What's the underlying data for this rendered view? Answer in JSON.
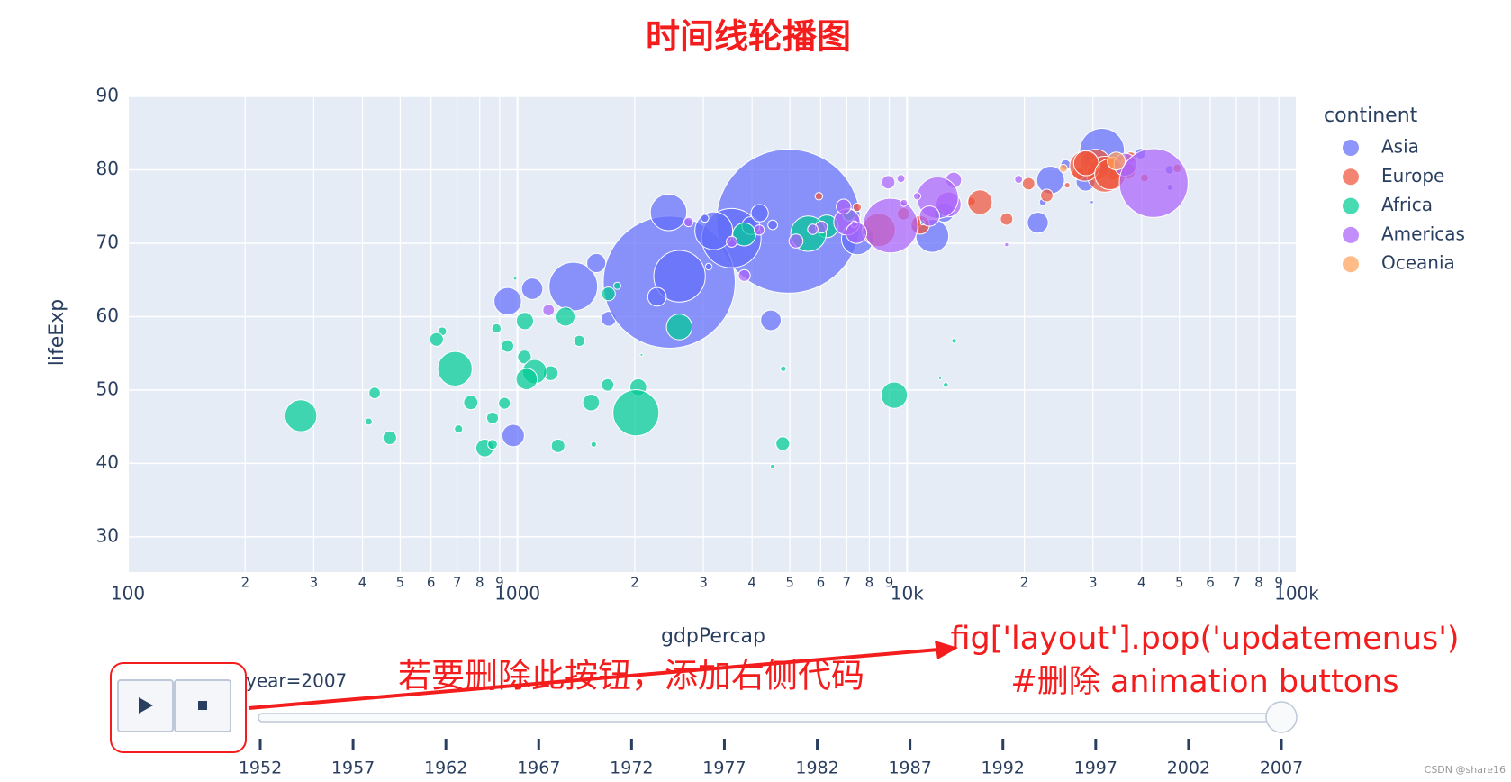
{
  "chart_data": {
    "type": "scatter",
    "title": "时间线轮播图",
    "x_label": "gdpPercap",
    "y_label": "lifeExp",
    "legend_title": "continent",
    "log_x": true,
    "grid": true,
    "xlim": [
      100,
      100000
    ],
    "ylim": [
      25.2,
      90
    ],
    "xticks": [
      100,
      {
        "value": 200,
        "label": "2"
      },
      {
        "value": 300,
        "label": "3"
      },
      {
        "value": 400,
        "label": "4"
      },
      {
        "value": 500,
        "label": "5"
      },
      {
        "value": 600,
        "label": "6"
      },
      {
        "value": 700,
        "label": "7"
      },
      {
        "value": 800,
        "label": "8"
      },
      {
        "value": 900,
        "label": "9"
      },
      1000,
      {
        "value": 2000,
        "label": "2"
      },
      {
        "value": 3000,
        "label": "3"
      },
      {
        "value": 4000,
        "label": "4"
      },
      {
        "value": 5000,
        "label": "5"
      },
      {
        "value": 6000,
        "label": "6"
      },
      {
        "value": 7000,
        "label": "7"
      },
      {
        "value": 8000,
        "label": "8"
      },
      {
        "value": 9000,
        "label": "9"
      },
      {
        "value": 10000,
        "label": "10k"
      },
      {
        "value": 20000,
        "label": "2"
      },
      {
        "value": 30000,
        "label": "3"
      },
      {
        "value": 40000,
        "label": "4"
      },
      {
        "value": 50000,
        "label": "5"
      },
      {
        "value": 60000,
        "label": "6"
      },
      {
        "value": 70000,
        "label": "7"
      },
      {
        "value": 80000,
        "label": "8"
      },
      {
        "value": 90000,
        "label": "9"
      },
      {
        "value": 100000,
        "label": "100k"
      }
    ],
    "yticks": [
      30,
      40,
      50,
      60,
      70,
      80,
      90
    ],
    "series": [
      {
        "name": "Asia",
        "color": "#636efa",
        "x": [
          975,
          29796,
          1391,
          1714,
          4959,
          39725,
          2452,
          3541,
          11606,
          4471,
          25523,
          31656,
          4519,
          1593,
          23348,
          47307,
          10461,
          12452,
          3096,
          944,
          1091,
          22316,
          2606,
          3190,
          21655,
          47143,
          3970,
          4185,
          28718,
          7458,
          2442,
          3025,
          2281
        ],
        "values": [
          43.8,
          75.6,
          64.1,
          59.7,
          73.0,
          82.2,
          64.7,
          70.7,
          71.0,
          59.5,
          80.7,
          82.6,
          72.5,
          67.3,
          78.6,
          77.6,
          72.0,
          74.2,
          66.8,
          62.1,
          63.8,
          75.6,
          65.5,
          71.7,
          72.8,
          80.0,
          72.4,
          74.1,
          78.4,
          70.6,
          74.2,
          73.4,
          62.7
        ],
        "sizes": [
          32,
          0.7,
          150,
          14,
          1318,
          7,
          1110,
          224,
          69,
          27,
          6.4,
          127,
          6,
          23,
          49,
          2.5,
          4,
          24,
          2.9,
          48,
          29,
          3.2,
          169,
          91,
          28,
          4.6,
          20,
          19,
          23,
          65,
          85,
          4,
          22
        ]
      },
      {
        "name": "Europe",
        "color": "#EF553B",
        "x": [
          5937,
          33693,
          7446,
          10681,
          14619,
          22833,
          30470,
          32170,
          27538,
          18009,
          36181,
          40676,
          28570,
          36798,
          49357,
          15390,
          20510,
          10808,
          9787,
          25768,
          28821,
          33860,
          37506,
          8458,
          33203
        ],
        "values": [
          76.4,
          79.4,
          74.9,
          73.0,
          75.7,
          76.5,
          80.7,
          79.4,
          79.5,
          73.3,
          81.8,
          78.9,
          80.5,
          79.8,
          80.2,
          75.6,
          78.1,
          72.5,
          74.0,
          77.9,
          80.9,
          80.9,
          81.7,
          71.8,
          79.4
        ],
        "sizes": [
          3.6,
          10,
          4.5,
          7,
          4.5,
          10,
          61,
          82,
          10,
          10,
          0.3,
          4.1,
          58,
          16,
          4.6,
          38,
          10,
          22,
          10,
          2,
          40,
          9,
          7.5,
          71,
          61
        ]
      },
      {
        "name": "Africa",
        "color": "#00cc96",
        "x": [
          6223,
          4797,
          1441,
          12570,
          1217,
          430,
          2042,
          706,
          1704,
          986,
          278,
          1545,
          2082,
          5581,
          12154,
          641,
          691,
          13206,
          1328,
          943,
          1569,
          415,
          12057,
          1045,
          759,
          1042,
          1803,
          10957,
          3820,
          824,
          4811,
          620,
          2014,
          863,
          1712,
          863,
          926,
          9270,
          2602,
          4513,
          1107,
          883,
          7093,
          1056,
          1271,
          470
        ],
        "values": [
          72.3,
          42.7,
          56.7,
          50.7,
          52.3,
          49.6,
          50.4,
          44.7,
          50.7,
          65.2,
          46.5,
          48.3,
          54.8,
          71.3,
          51.6,
          58.0,
          52.9,
          56.7,
          60.0,
          56.0,
          42.6,
          45.7,
          74.0,
          59.4,
          48.3,
          54.5,
          64.2,
          72.8,
          71.2,
          42.1,
          52.9,
          56.9,
          46.9,
          46.2,
          63.1,
          42.6,
          48.2,
          49.3,
          58.6,
          39.6,
          52.5,
          58.4,
          73.9,
          51.5,
          42.4,
          43.5
        ],
        "sizes": [
          33,
          12,
          8,
          1.6,
          14,
          8.4,
          18,
          4.4,
          10,
          0.7,
          65,
          18,
          0.5,
          80,
          0.55,
          4.9,
          76,
          1.5,
          23,
          9.9,
          2,
          3.2,
          6,
          19,
          13,
          12,
          3.3,
          1.25,
          34,
          20,
          2,
          12,
          135,
          8.9,
          12,
          6.1,
          9,
          44,
          42,
          1.1,
          38,
          5.7,
          10,
          29,
          11.7,
          12
        ]
      },
      {
        "name": "Americas",
        "color": "#ab63fa",
        "x": [
          12779,
          3822,
          9066,
          36319,
          13172,
          7007,
          9645,
          8948,
          6025,
          6873,
          5728,
          5186,
          1202,
          3548,
          7321,
          11978,
          2749,
          9809,
          4173,
          7409,
          19329,
          18009,
          42952,
          10611,
          11416
        ],
        "values": [
          75.3,
          65.6,
          72.4,
          80.7,
          78.6,
          72.9,
          78.8,
          78.3,
          72.2,
          75.0,
          71.9,
          70.3,
          60.9,
          70.2,
          72.6,
          76.2,
          72.9,
          75.5,
          71.8,
          71.4,
          78.7,
          69.8,
          78.2,
          76.4,
          73.7
        ],
        "sizes": [
          40,
          9,
          190,
          33,
          16,
          44,
          4.1,
          11.4,
          9.3,
          14,
          6.9,
          12.6,
          8.5,
          7.5,
          2.8,
          109,
          5.7,
          3.2,
          6.7,
          28,
          4,
          1.06,
          301,
          3.4,
          26
        ]
      },
      {
        "name": "Oceania",
        "color": "#FFA15A",
        "x": [
          34435,
          25185
        ],
        "values": [
          81.2,
          80.2
        ],
        "sizes": [
          20.4,
          4.1
        ]
      }
    ]
  },
  "slider": {
    "label": "year=2007",
    "steps": [
      "1952",
      "1957",
      "1962",
      "1967",
      "1972",
      "1977",
      "1982",
      "1987",
      "1992",
      "1997",
      "2002",
      "2007"
    ],
    "active": 11
  },
  "annotations": {
    "note": "若要删除此按钮，添加右侧代码",
    "code": [
      "fig['layout'].pop('updatemenus')",
      "#删除 animation buttons"
    ]
  },
  "watermark": "CSDN @share16"
}
